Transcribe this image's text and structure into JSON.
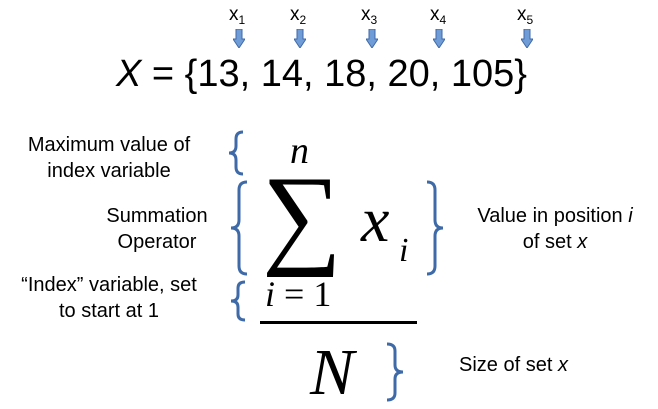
{
  "colors": {
    "brace": "#3f6aa8",
    "arrow_fill": "#6f9bd6",
    "arrow_stroke": "#3f6aa8",
    "text": "#000000"
  },
  "set_labels": [
    {
      "base": "x",
      "sub": "1"
    },
    {
      "base": "x",
      "sub": "2"
    },
    {
      "base": "x",
      "sub": "3"
    },
    {
      "base": "x",
      "sub": "4"
    },
    {
      "base": "x",
      "sub": "5"
    }
  ],
  "set_definition": {
    "variable": "X",
    "rest": " = {13, 14, 18, 20, 105}"
  },
  "formula": {
    "upper_limit": "n",
    "operator": "∑",
    "term": "x",
    "term_subscript": "i",
    "index_variable": "i",
    "index_equals": " = ",
    "index_start": "1",
    "denominator": "N"
  },
  "annotations": {
    "max_index": {
      "line1": "Maximum value of",
      "line2": "index variable"
    },
    "summation": {
      "line1": "Summation",
      "line2": "Operator"
    },
    "index_var": {
      "line1": "“Index” variable, set",
      "line2": "to start at 1"
    },
    "value_pos": {
      "line1_text": "Value in position ",
      "line1_var": "i",
      "line2_text": "of set ",
      "line2_var": "x"
    },
    "size": {
      "text": "Size of set ",
      "var": "x"
    }
  }
}
